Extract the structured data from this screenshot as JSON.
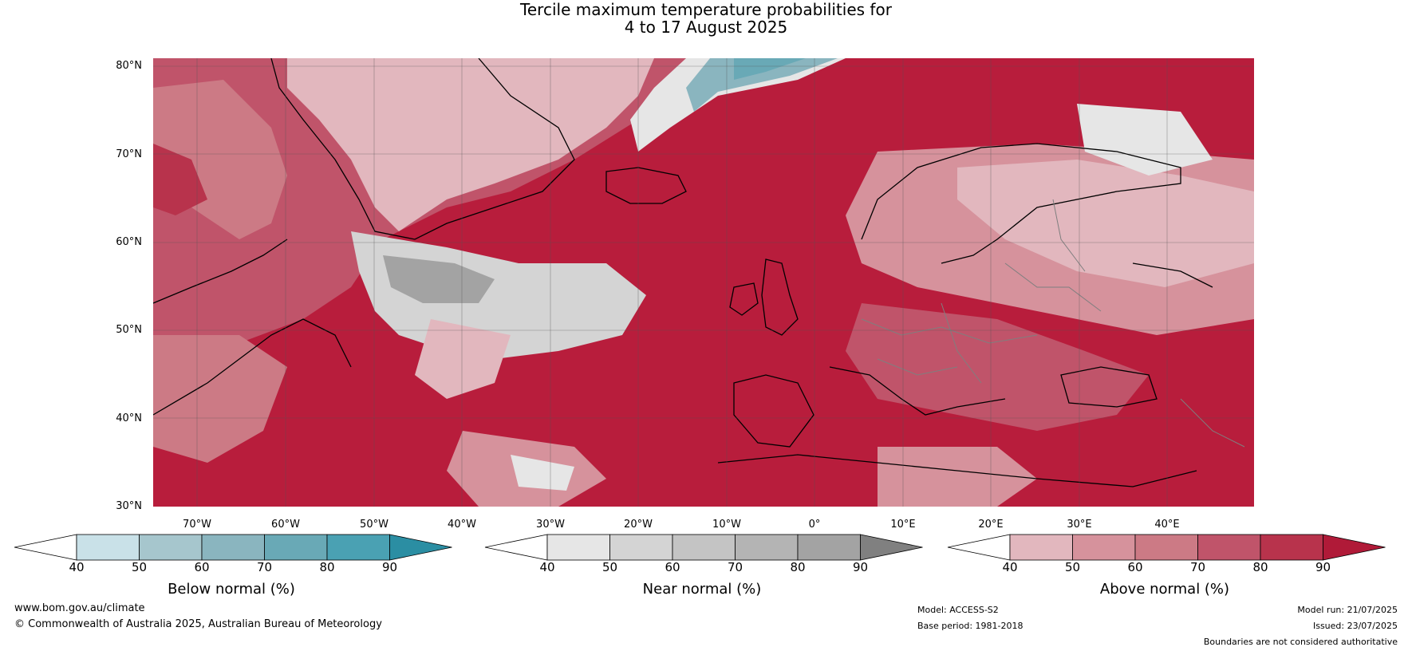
{
  "title": {
    "line1": "Tercile maximum temperature probabilities for",
    "line2": "4 to 17 August 2025"
  },
  "map": {
    "lat_labels": [
      "80°N",
      "70°N",
      "60°N",
      "50°N",
      "40°N",
      "30°N"
    ],
    "lon_labels": [
      "70°W",
      "60°W",
      "50°W",
      "40°W",
      "30°W",
      "20°W",
      "10°W",
      "0°",
      "10°E",
      "20°E",
      "30°E",
      "40°E"
    ],
    "colors": {
      "ocean_base": "#b81d3c",
      "land_border": "#000000",
      "country_border": "#7f7f7f",
      "grid": "#555555"
    }
  },
  "colorbars": [
    {
      "id": "below",
      "title": "Below normal (%)",
      "ticks": [
        "40",
        "50",
        "60",
        "70",
        "80",
        "90"
      ],
      "colors": [
        "#ffffff",
        "#c9e1e8",
        "#a6c6cd",
        "#8ab5bf",
        "#69a9b6",
        "#4aa1b3",
        "#2b8ea3"
      ]
    },
    {
      "id": "near",
      "title": "Near normal (%)",
      "ticks": [
        "40",
        "50",
        "60",
        "70",
        "80",
        "90"
      ],
      "colors": [
        "#ffffff",
        "#e6e6e6",
        "#d4d4d4",
        "#c4c4c4",
        "#b4b4b4",
        "#a3a3a3",
        "#808080"
      ]
    },
    {
      "id": "above",
      "title": "Above normal (%)",
      "ticks": [
        "40",
        "50",
        "60",
        "70",
        "80",
        "90"
      ],
      "colors": [
        "#ffffff",
        "#e2b7be",
        "#d6929c",
        "#cc7a85",
        "#c0546a",
        "#b8334c",
        "#b01a38"
      ]
    }
  ],
  "footer": {
    "website": "www.bom.gov.au/climate",
    "copyright": "© Commonwealth of Australia 2025, Australian Bureau of Meteorology",
    "model": "Model: ACCESS-S2",
    "base_period": "Base period: 1981-2018",
    "model_run": "Model run: 21/07/2025",
    "issued": "Issued: 23/07/2025",
    "disclaimer": "Boundaries are not considered authoritative"
  }
}
